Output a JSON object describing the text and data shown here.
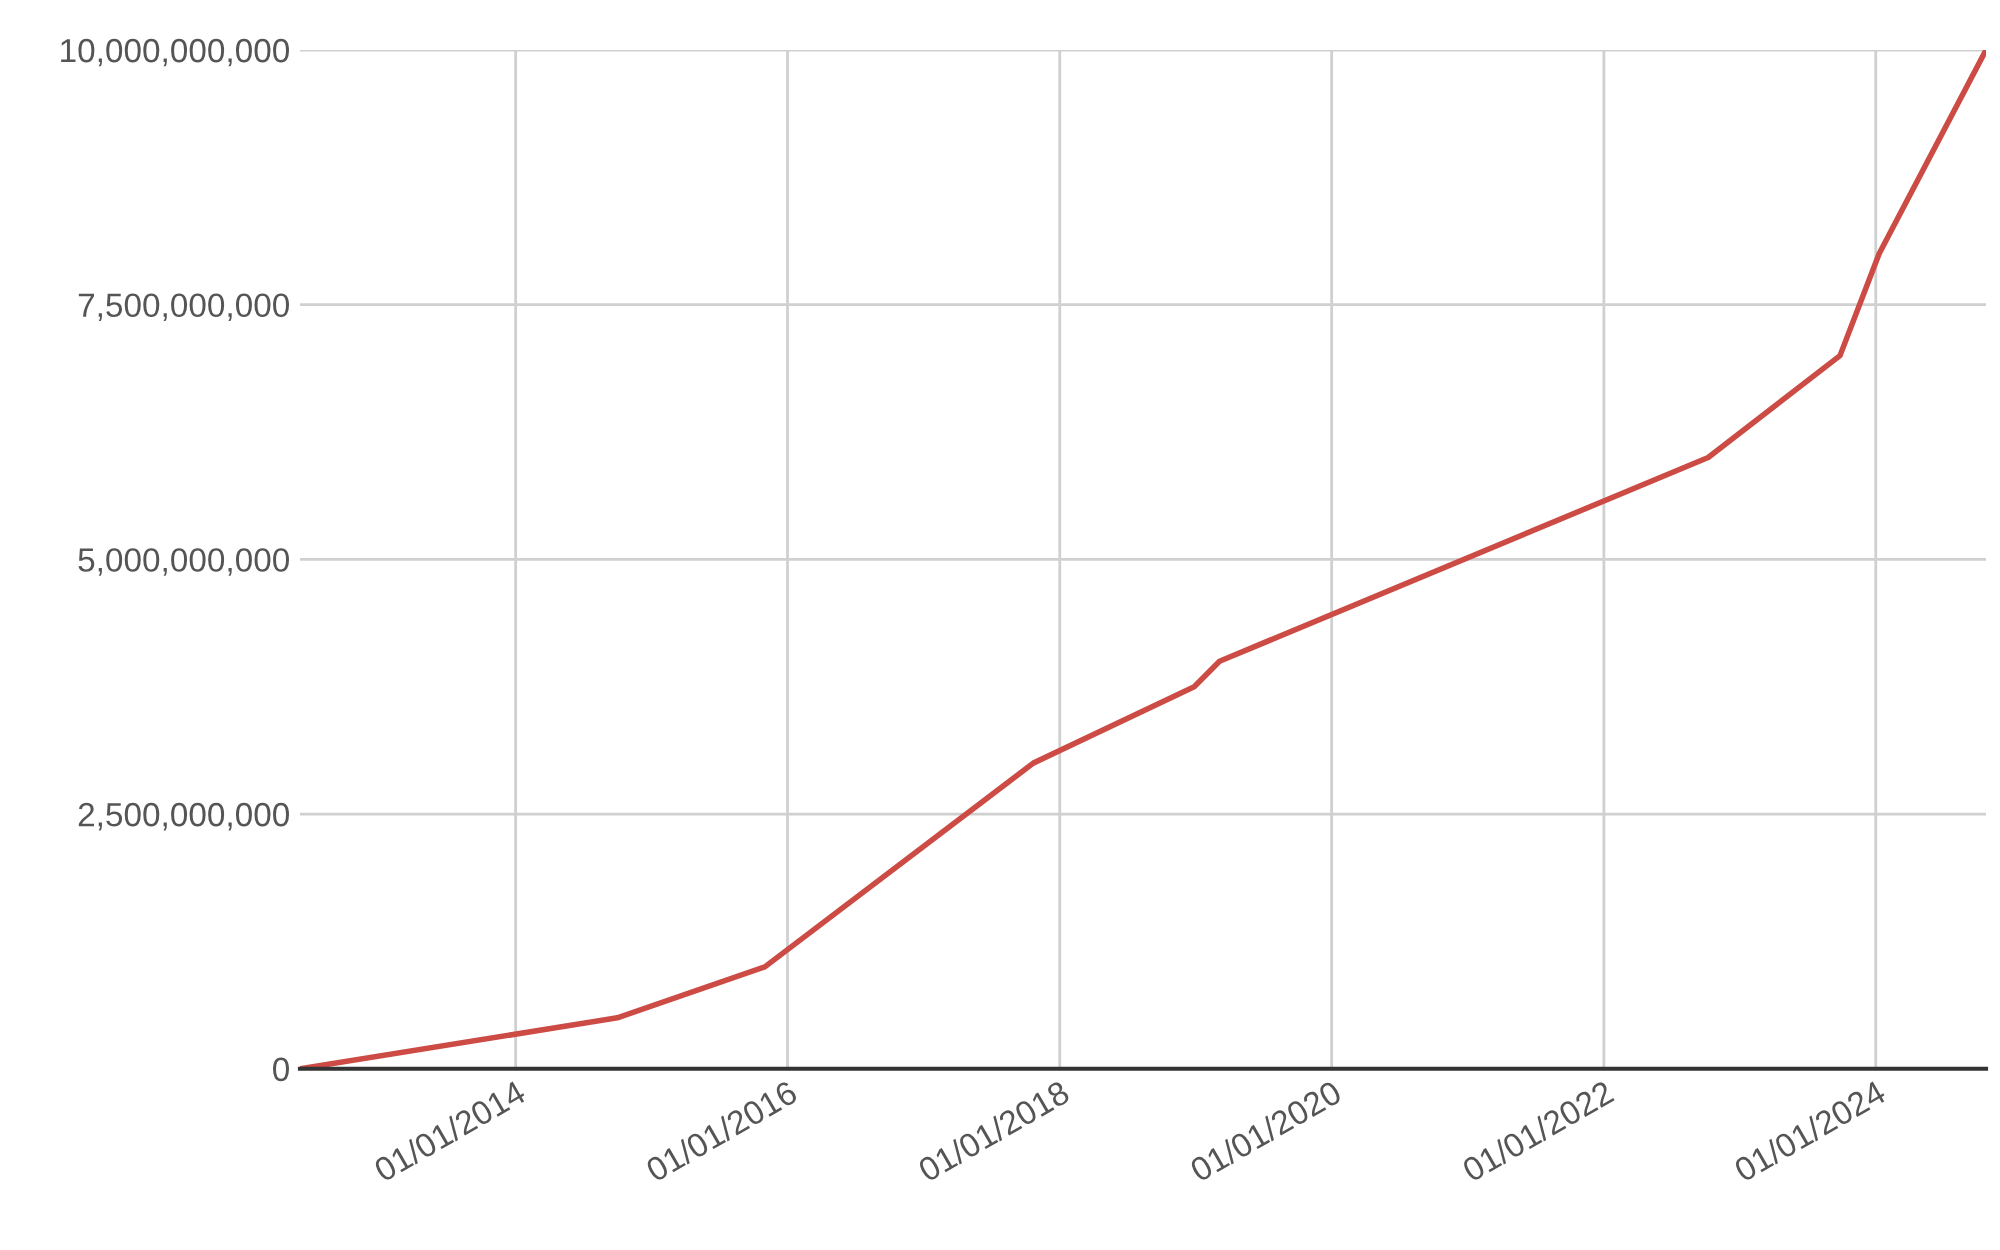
{
  "chart_data": {
    "type": "line",
    "x": [
      "2012-06-01",
      "2014-10-01",
      "2015-11-01",
      "2017-10-22",
      "2018-12-28",
      "2019-03-06",
      "2022-10-08",
      "2023-09-27",
      "2024-01-10",
      "2024-10-23"
    ],
    "series": [
      {
        "color": "#cc4b45",
        "values": [
          0,
          500000000,
          1000000000,
          3000000000,
          3750000000,
          4000000000,
          6000000000,
          7000000000,
          8000000000,
          10000000000
        ]
      }
    ],
    "xlim": [
      "2012-06-01",
      "2024-10-23"
    ],
    "xticks": [
      {
        "value": "2014-01-01",
        "label": "01/01/2014"
      },
      {
        "value": "2016-01-01",
        "label": "01/01/2016"
      },
      {
        "value": "2018-01-01",
        "label": "01/01/2018"
      },
      {
        "value": "2020-01-01",
        "label": "01/01/2020"
      },
      {
        "value": "2022-01-01",
        "label": "01/01/2022"
      },
      {
        "value": "2024-01-01",
        "label": "01/01/2024"
      }
    ],
    "ylim": [
      0,
      10000000000
    ],
    "yticks": [
      {
        "value": 0,
        "label": "0"
      },
      {
        "value": 2500000000,
        "label": "2,500,000,000"
      },
      {
        "value": 5000000000,
        "label": "5,000,000,000"
      },
      {
        "value": 7500000000,
        "label": "7,500,000,000"
      },
      {
        "value": 10000000000,
        "label": "10,000,000,000"
      }
    ],
    "grid": true,
    "marker": "none",
    "line_style": "solid",
    "legend": false
  }
}
